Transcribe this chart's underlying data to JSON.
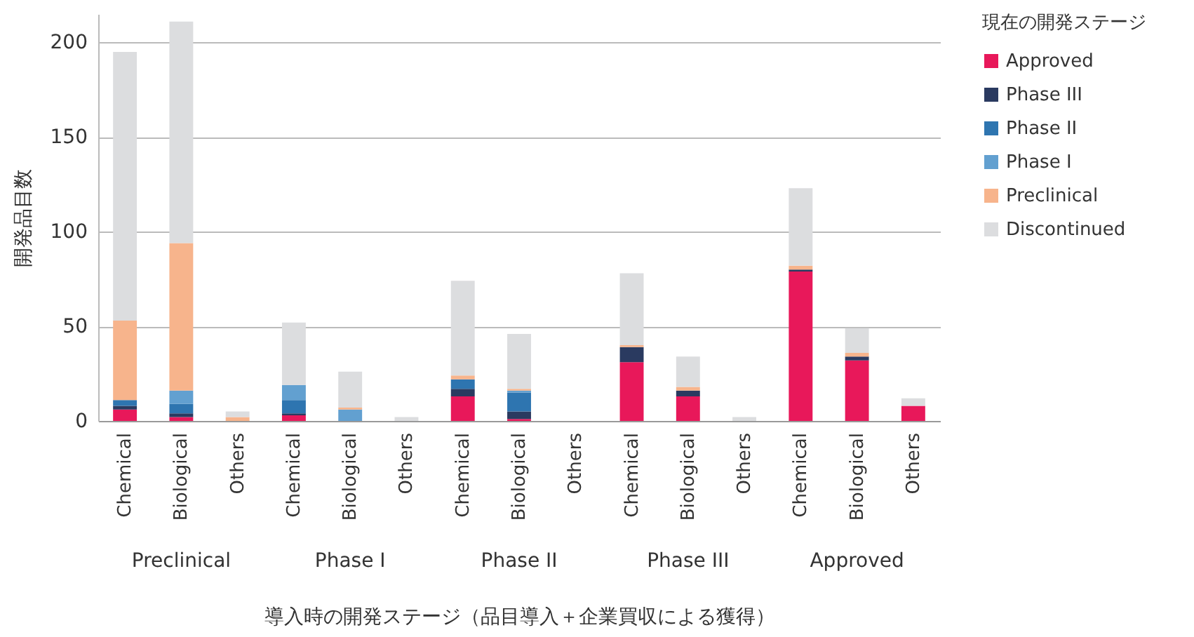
{
  "chart_data": {
    "type": "bar",
    "stacked": true,
    "categories": [
      "Chemical",
      "Biological",
      "Others",
      "Chemical",
      "Biological",
      "Others",
      "Chemical",
      "Biological",
      "Others",
      "Chemical",
      "Biological",
      "Others",
      "Chemical",
      "Biological",
      "Others"
    ],
    "annotations": [
      "Preclinical",
      "Phase I",
      "Phase II",
      "Phase III",
      "Approved"
    ],
    "xlabel": "導入時の開発ステージ（品目導入＋企業買収による獲得）",
    "ylabel": "開発品目数",
    "legend_title": "現在の開発ステージ",
    "series": [
      {
        "name": "Approved",
        "color": "#e8185a",
        "values": [
          6,
          2,
          0,
          3,
          0,
          0,
          13,
          1,
          0,
          31,
          13,
          0,
          79,
          32,
          8
        ]
      },
      {
        "name": "Phase III",
        "color": "#2a3a60",
        "values": [
          2,
          2,
          0,
          1,
          0,
          0,
          4,
          4,
          0,
          8,
          3,
          0,
          1,
          2,
          0
        ]
      },
      {
        "name": "Phase II",
        "color": "#2e75b0",
        "values": [
          3,
          5,
          0,
          7,
          0,
          0,
          5,
          10,
          0,
          0,
          0,
          0,
          0,
          0,
          0
        ]
      },
      {
        "name": "Phase I",
        "color": "#62a0d0",
        "values": [
          0,
          7,
          0,
          8,
          6,
          0,
          0,
          1,
          0,
          0,
          0,
          0,
          0,
          0,
          0
        ]
      },
      {
        "name": "Preclinical",
        "color": "#f7b48c",
        "values": [
          42,
          78,
          2,
          0,
          1,
          0,
          2,
          1,
          0,
          1,
          2,
          0,
          2,
          2,
          0
        ]
      },
      {
        "name": "Discontinued",
        "color": "#dcdddf",
        "values": [
          142,
          117,
          3,
          33,
          19,
          2,
          50,
          29,
          0,
          38,
          16,
          2,
          41,
          13,
          4
        ]
      }
    ],
    "ylim": [
      0,
      215
    ],
    "yticks": [
      0,
      50,
      100,
      150,
      200
    ],
    "grid": "y",
    "legend": "right"
  }
}
